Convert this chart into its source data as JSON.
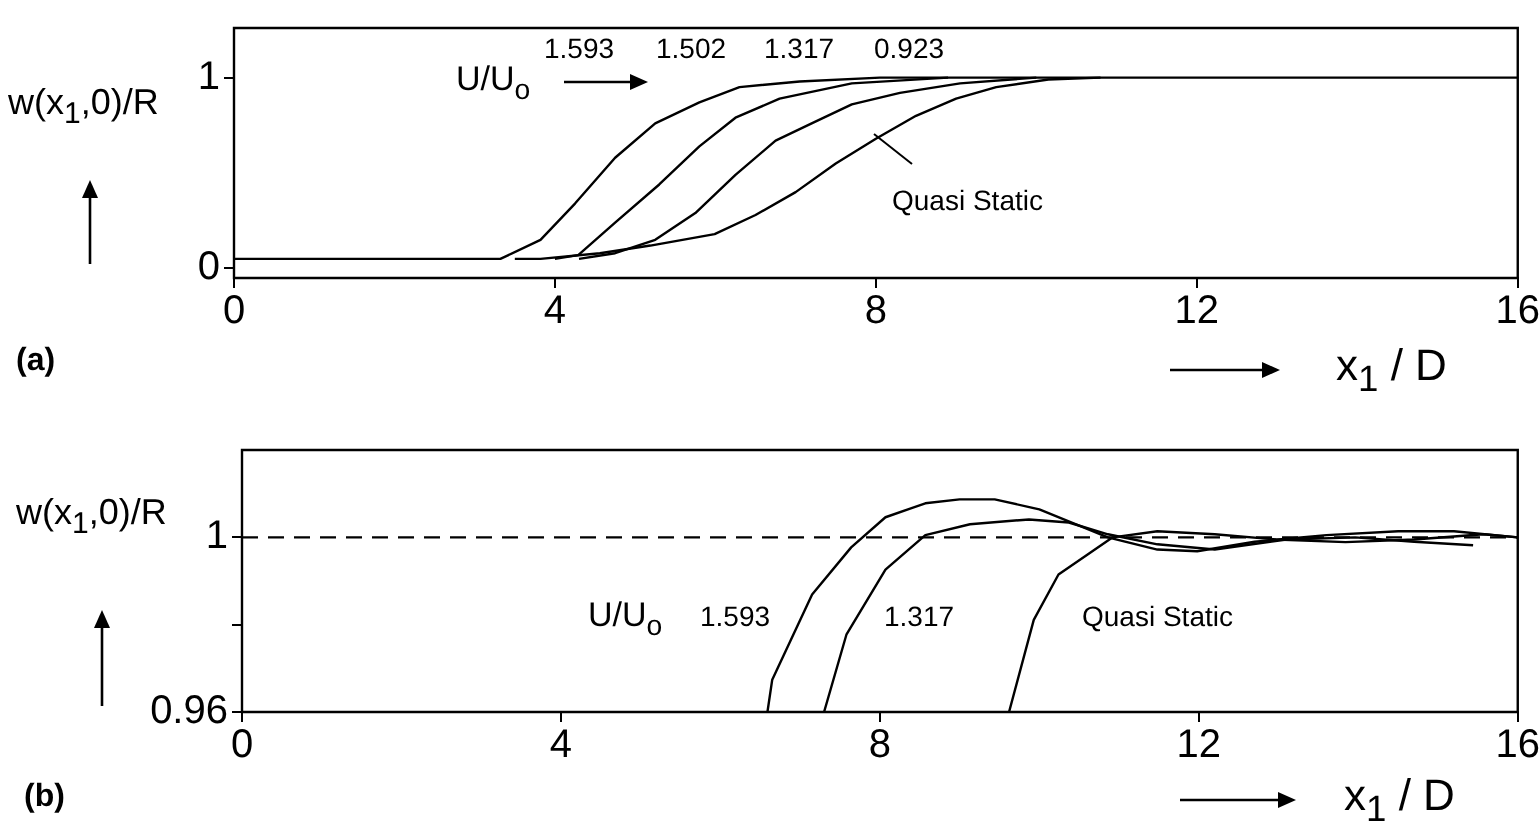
{
  "chart_data": [
    {
      "type": "line",
      "ylabel": "w(x$_{1}$,0)/R",
      "xlabel": "x$_{1}$ / D",
      "xlim": [
        0,
        16
      ],
      "xticks": [
        0,
        4,
        8,
        12,
        16
      ],
      "ylim": [
        -0.05,
        1.26
      ],
      "yticks": [
        0,
        1
      ],
      "grid": false,
      "legend": false,
      "marker": "none",
      "line_style": "solid",
      "series": [
        {
          "color": "#000000",
          "x": [
            0,
            3.32,
            3.82,
            4.25,
            4.75,
            5.25,
            5.8,
            6.3,
            7.05,
            8.05,
            16
          ],
          "values": [
            0.05,
            0.05,
            0.15,
            0.34,
            0.58,
            0.76,
            0.87,
            0.95,
            0.98,
            1,
            1
          ]
        },
        {
          "color": "#000000",
          "x": [
            4,
            4.29,
            4.75,
            5.3,
            5.8,
            6.25,
            6.8,
            7.7,
            8.9
          ],
          "values": [
            0.05,
            0.07,
            0.24,
            0.44,
            0.64,
            0.79,
            0.89,
            0.97,
            1
          ]
        },
        {
          "color": "#000000",
          "x": [
            4.3,
            4.75,
            5.25,
            5.75,
            6.25,
            6.75,
            7.2,
            7.7,
            8.3,
            9.05,
            10
          ],
          "values": [
            0.05,
            0.08,
            0.15,
            0.29,
            0.49,
            0.67,
            0.76,
            0.86,
            0.92,
            0.97,
            1
          ]
        },
        {
          "color": "#000000",
          "x": [
            3.5,
            3.82,
            4.56,
            5.19,
            5.99,
            6.5,
            7,
            7.5,
            8,
            8.5,
            9,
            9.5,
            10.15,
            10.8
          ],
          "values": [
            0.05,
            0.05,
            0.08,
            0.12,
            0.18,
            0.28,
            0.4,
            0.55,
            0.68,
            0.8,
            0.89,
            0.95,
            0.99,
            1
          ]
        }
      ],
      "annotations": [
        "(a)",
        "U/U$_{o}$",
        "1.593",
        "1.502",
        "1.317",
        "0.923",
        "Quasi Static"
      ]
    },
    {
      "type": "line",
      "ylabel": "w(x$_{1}$,0)/R",
      "xlabel": "x$_{1}$ / D",
      "xlim": [
        0,
        16
      ],
      "xticks": [
        0,
        4,
        8,
        12,
        16
      ],
      "ylim": [
        0.96,
        1.02
      ],
      "yticks": [
        0.96,
        {
          "value": 0.98,
          "label": null
        },
        1
      ],
      "grid": false,
      "legend": false,
      "marker": "none",
      "line_style": "solid",
      "series": [
        {
          "color": "#000000",
          "x": [
            6.59,
            6.65,
            7.15,
            7.64,
            8.07,
            8.57,
            9,
            9.44,
            10,
            10.86,
            11.48,
            11.98,
            12.7,
            13.6,
            14.5,
            15.2,
            16
          ],
          "values": [
            0.96,
            0.9674,
            0.9869,
            0.9977,
            1.0046,
            1.0078,
            1.0087,
            1.0087,
            1.0064,
            1,
            0.9972,
            0.9968,
            0.999,
            1.0005,
            1.0014,
            1.0014,
            1
          ]
        },
        {
          "color": "#000000",
          "x": [
            7.3,
            7.58,
            8.07,
            8.57,
            9.13,
            9.87,
            10.37,
            10.86,
            11.48,
            12.2,
            13.1,
            13.96,
            14.7,
            15.44
          ],
          "values": [
            0.96,
            0.9777,
            0.9926,
            1.0005,
            1.003,
            1.0041,
            1.0034,
            1.0007,
            0.9984,
            0.9972,
            0.9995,
            1,
            0.999,
            0.9982
          ]
        },
        {
          "color": "#000000",
          "x": [
            9.62,
            9.93,
            10.24,
            10.61,
            10.92,
            11.48,
            12.2,
            12.97,
            13.84,
            14.7,
            15.57,
            16
          ],
          "values": [
            0.96,
            0.9811,
            0.9915,
            0.9961,
            1,
            1.0014,
            1.0007,
            0.9995,
            0.9989,
            0.9995,
            1.0007,
            1
          ]
        }
      ],
      "ref_lines": [
        {
          "axis": "y",
          "value": 1,
          "line_style": "dashed",
          "color": "#000000"
        }
      ],
      "annotations": [
        "(b)",
        "U/U$_{o}$",
        "1.593",
        "1.317",
        "Quasi Static"
      ]
    }
  ]
}
